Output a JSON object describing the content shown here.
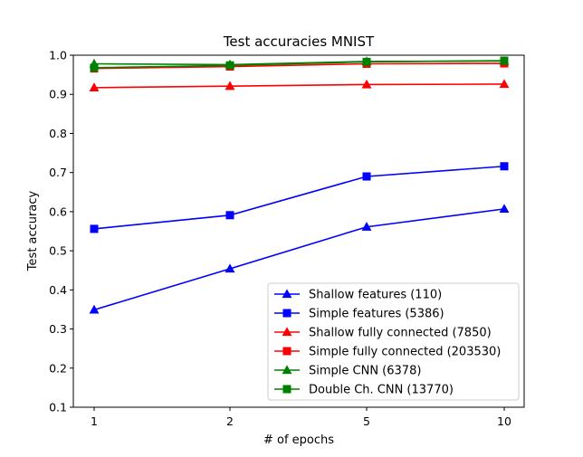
{
  "chart_data": {
    "type": "line",
    "title": "Test accuracies MNIST",
    "xlabel": "# of epochs",
    "ylabel": "Test accuracy",
    "categories": [
      "1",
      "2",
      "5",
      "10"
    ],
    "ylim": [
      0.1,
      1.0
    ],
    "yticks": [
      "0.1",
      "0.2",
      "0.3",
      "0.4",
      "0.5",
      "0.6",
      "0.7",
      "0.8",
      "0.9",
      "1.0"
    ],
    "grid": false,
    "legend_position": "lower-right",
    "series": [
      {
        "name": "Shallow features (110)",
        "color": "#0000ff",
        "marker": "triangle",
        "values": [
          0.349,
          0.454,
          0.561,
          0.607
        ]
      },
      {
        "name": "Simple features (5386)",
        "color": "#0000ff",
        "marker": "square",
        "values": [
          0.556,
          0.591,
          0.69,
          0.716
        ]
      },
      {
        "name": "Shallow fully connected (7850)",
        "color": "#ff0000",
        "marker": "triangle",
        "values": [
          0.917,
          0.921,
          0.925,
          0.926
        ]
      },
      {
        "name": "Simple fully connected (203530)",
        "color": "#ff0000",
        "marker": "square",
        "values": [
          0.966,
          0.971,
          0.978,
          0.979
        ]
      },
      {
        "name": "Simple CNN (6378)",
        "color": "#008000",
        "marker": "triangle",
        "values": [
          0.978,
          0.976,
          0.984,
          0.985
        ]
      },
      {
        "name": "Double Ch. CNN (13770)",
        "color": "#008000",
        "marker": "square",
        "values": [
          0.968,
          0.974,
          0.983,
          0.986
        ]
      }
    ]
  }
}
